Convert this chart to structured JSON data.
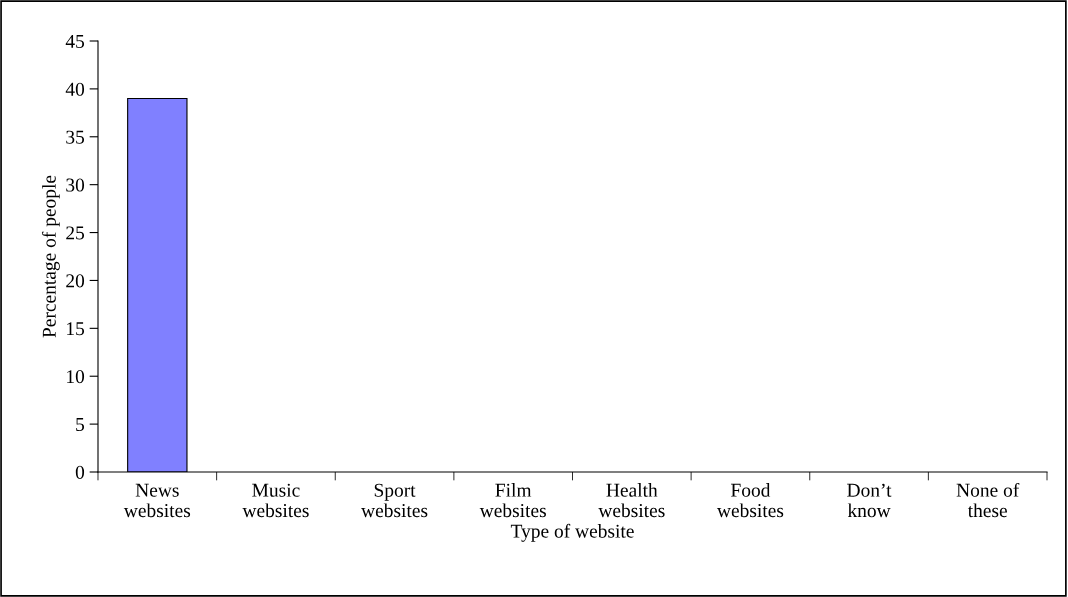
{
  "chart_data": {
    "type": "bar",
    "xlabel": "Type of website",
    "ylabel": "Percentage of people",
    "categories": [
      "News\nwebsites",
      "Music\nwebsites",
      "Sport\nwebsites",
      "Film\nwebsites",
      "Health\nwebsites",
      "Food\nwebsites",
      "Don’t\nknow",
      "None of\nthese"
    ],
    "values": [
      39,
      null,
      null,
      null,
      null,
      null,
      null,
      null
    ],
    "color": "#8080ff",
    "ylim": [
      0,
      45
    ],
    "yticks": [
      0,
      5,
      10,
      15,
      20,
      25,
      30,
      35,
      40,
      45
    ],
    "grid": false,
    "legend": false
  }
}
